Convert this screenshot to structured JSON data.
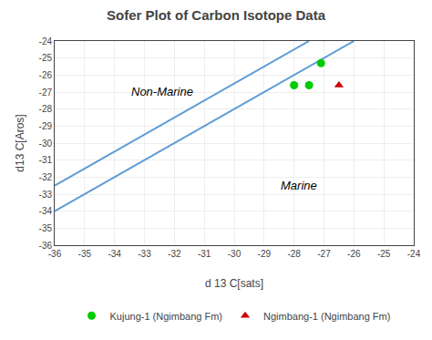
{
  "chart_data": {
    "type": "scatter",
    "title": "Sofer Plot of Carbon Isotope Data",
    "x_label": "d 13 C[sats]",
    "y_label": "d13 C[Aros]",
    "xlim": [
      -36,
      -24
    ],
    "ylim": [
      -36,
      -24
    ],
    "xticks": [
      -36,
      -35,
      -34,
      -33,
      -32,
      -31,
      -30,
      -29,
      -28,
      -27,
      -26,
      -25,
      -24
    ],
    "yticks": [
      -36,
      -35,
      -34,
      -33,
      -32,
      -31,
      -30,
      -29,
      -28,
      -27,
      -26,
      -25,
      -24
    ],
    "grid": true,
    "legend": "bottom",
    "series": [
      {
        "type": "line",
        "color": "#5B9BD5",
        "x": [
          -36,
          -26
        ],
        "values": [
          -34,
          -24
        ]
      },
      {
        "type": "line",
        "color": "#5B9BD5",
        "x": [
          -36,
          -27.5
        ],
        "values": [
          -32.5,
          -24
        ]
      },
      {
        "name": "Kujung-1 (Ngimbang Fm)",
        "type": "scatter",
        "marker": "circle",
        "color": "#00CC00",
        "x": [
          -28.0,
          -27.5,
          -27.1
        ],
        "values": [
          -26.6,
          -26.6,
          -25.3
        ]
      },
      {
        "name": "Ngimbang-1 (Ngimbang Fm)",
        "type": "scatter",
        "marker": "triangle-up",
        "color": "#CC0000",
        "x": [
          -26.5
        ],
        "values": [
          -26.6
        ]
      }
    ],
    "annotations": [
      {
        "text": "Non-Marine",
        "x": -33.5,
        "y": -27.5
      },
      {
        "text": "Marine",
        "x": -28.5,
        "y": -33.0
      }
    ]
  }
}
